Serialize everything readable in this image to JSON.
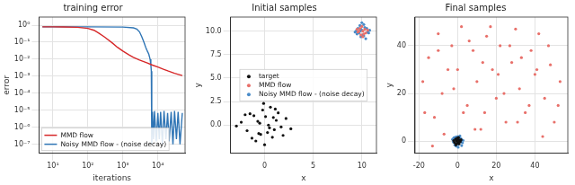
{
  "chart_data": [
    {
      "type": "line",
      "title": "training error",
      "x_label": "iterations",
      "y_label": "error",
      "log": true,
      "grid": true,
      "legend": "lower left",
      "xlim": [
        4,
        60000
      ],
      "xticks": [
        {
          "value": 10,
          "label": "10¹"
        },
        {
          "value": 100,
          "label": "10²"
        },
        {
          "value": 1000,
          "label": "10³"
        },
        {
          "value": 10000,
          "label": "10⁴"
        }
      ],
      "ylim": [
        3e-08,
        3
      ],
      "yticks": [
        {
          "value": 1,
          "label": "10⁰"
        },
        {
          "value": 0.1,
          "label": "10⁻¹"
        },
        {
          "value": 0.01,
          "label": "10⁻²"
        },
        {
          "value": 0.001,
          "label": "10⁻³"
        },
        {
          "value": 0.0001,
          "label": "10⁻⁴"
        },
        {
          "value": 1e-05,
          "label": "10⁻⁵"
        },
        {
          "value": 1e-06,
          "label": "10⁻⁶"
        },
        {
          "value": 1e-07,
          "label": "10⁻⁷"
        }
      ],
      "series": [
        {
          "name": "MMD flow",
          "color": "#d62728",
          "marker": "none",
          "line_style": "solid",
          "x": [
            5,
            10,
            20,
            50,
            100,
            150,
            200,
            300,
            500,
            700,
            1000,
            1500,
            2000,
            3000,
            5000,
            7000,
            10000,
            15000,
            20000,
            30000,
            50000
          ],
          "values": [
            0.8,
            0.8,
            0.79,
            0.75,
            0.65,
            0.5,
            0.35,
            0.2,
            0.09,
            0.05,
            0.03,
            0.018,
            0.013,
            0.009,
            0.006,
            0.0045,
            0.0035,
            0.0025,
            0.002,
            0.0015,
            0.0011
          ]
        },
        {
          "name": "Noisy MMD flow - (noise decay)",
          "color": "#2f75b5",
          "marker": "none",
          "line_style": "solid",
          "x": [
            5,
            10,
            100,
            1000,
            2000,
            2500,
            3000,
            3500,
            4000,
            4500,
            5000,
            5500,
            6000,
            6300,
            6500,
            6700,
            7000,
            7500,
            8000,
            9000,
            10000,
            11000,
            12000,
            13500,
            15000,
            17000,
            19000,
            21000,
            24000,
            27000,
            30000,
            34000,
            38000,
            43000,
            50000
          ],
          "values": [
            0.8,
            0.8,
            0.8,
            0.78,
            0.7,
            0.6,
            0.4,
            0.2,
            0.1,
            0.05,
            0.03,
            0.02,
            0.01,
            0.005,
            0.002,
            1e-07,
            8e-06,
            2e-07,
            9e-06,
            1.5e-07,
            7e-06,
            2e-07,
            8e-06,
            1e-07,
            9e-06,
            2e-07,
            7e-06,
            1.5e-07,
            8e-06,
            1e-07,
            9e-06,
            2e-07,
            8e-06,
            1e-07,
            7e-06
          ]
        }
      ]
    },
    {
      "type": "scatter",
      "title": "Initial samples",
      "x_label": "x",
      "y_label": "y",
      "grid": true,
      "legend": "center",
      "xlim": [
        -3.5,
        11.5
      ],
      "xticks": [
        0,
        5,
        10
      ],
      "ylim": [
        -3,
        11.5
      ],
      "yticks": [
        {
          "value": 0,
          "label": "0.0"
        },
        {
          "value": 2.5,
          "label": "2.5"
        },
        {
          "value": 5,
          "label": "5.0"
        },
        {
          "value": 7.5,
          "label": "7.5"
        },
        {
          "value": 10,
          "label": "10.0"
        }
      ],
      "series": [
        {
          "name": "target",
          "color": "#111111",
          "marker": "o",
          "x": [
            -0.5,
            0.3,
            1.2,
            -1.1,
            0.8,
            -0.2,
            1.7,
            -1.8,
            0.1,
            -0.9,
            2.2,
            -2.4,
            0.6,
            1.0,
            -0.4,
            -1.5,
            0.4,
            1.4,
            -0.7,
            0.0,
            2.7,
            -2.9,
            0.9,
            -1.3,
            1.9,
            -0.1,
            0.5,
            -0.6,
            1.1,
            -2.0
          ],
          "values": [
            0.2,
            -0.8,
            0.5,
            1.0,
            -1.3,
            1.6,
            -0.2,
            -0.6,
            0.9,
            -1.7,
            0.7,
            0.3,
            1.9,
            -0.5,
            -1.0,
            1.2,
            0.0,
            1.3,
            0.4,
            -2.1,
            -0.4,
            -0.1,
            0.8,
            -1.4,
            -1.1,
            2.3,
            -0.3,
            -0.9,
            1.7,
            1.1
          ]
        },
        {
          "name": "MMD flow",
          "color": "#e8706a",
          "marker": "o",
          "x": [
            10.1,
            9.8,
            10.4,
            9.6,
            10.0,
            10.3,
            9.9,
            10.6,
            9.5,
            10.2,
            9.7,
            10.1
          ],
          "values": [
            10.0,
            10.3,
            9.8,
            9.9,
            10.5,
            10.2,
            9.6,
            10.1,
            10.2,
            9.7,
            10.0,
            9.4
          ]
        },
        {
          "name": "Noisy MMD flow - (noise decay)",
          "color": "#4a8cc9",
          "marker": "o",
          "x": [
            10.0,
            9.7,
            10.3,
            9.4,
            10.6,
            9.9,
            10.2,
            9.6,
            10.8,
            10.1,
            9.3,
            10.4,
            9.8,
            10.0,
            10.5,
            9.5,
            10.7,
            9.9,
            10.2,
            9.8
          ],
          "values": [
            10.1,
            9.8,
            10.4,
            10.0,
            9.9,
            9.4,
            10.7,
            10.3,
            10.1,
            9.6,
            9.9,
            9.2,
            10.6,
            10.9,
            10.3,
            9.7,
            9.8,
            10.2,
            9.5,
            10.0
          ]
        }
      ]
    },
    {
      "type": "scatter",
      "title": "Final samples",
      "x_label": "x",
      "y_label": "y",
      "grid": true,
      "xlim": [
        -22,
        57
      ],
      "xticks": [
        -20,
        0,
        20,
        40
      ],
      "ylim": [
        -5,
        52
      ],
      "yticks": [
        0,
        20,
        40
      ],
      "series": [
        {
          "name": "target",
          "color": "#111111",
          "marker": "o",
          "x": [
            -0.5,
            0.3,
            1.0,
            -1.1,
            0.7,
            -0.2,
            1.4,
            -1.6,
            0.1,
            -0.9,
            1.8,
            -2.0,
            0.5,
            -0.4,
            0.0
          ],
          "values": [
            0.2,
            -0.7,
            0.5,
            0.9,
            -1.1,
            1.3,
            -0.2,
            -0.5,
            0.8,
            -1.5,
            0.6,
            0.3,
            1.6,
            -0.9,
            0.0
          ]
        },
        {
          "name": "MMD flow",
          "color": "#e8706a",
          "marker": "o",
          "x": [
            -18,
            -15,
            -12,
            -10,
            -8,
            -5,
            -3,
            2,
            5,
            8,
            10,
            12,
            15,
            18,
            20,
            22,
            25,
            28,
            30,
            32,
            35,
            38,
            40,
            42,
            45,
            48,
            50,
            53,
            -13,
            -7,
            0,
            6,
            14,
            24,
            33,
            44,
            -17,
            -2,
            9,
            17,
            27,
            37,
            47,
            52,
            -10,
            3,
            21,
            31,
            41,
            13
          ],
          "values": [
            25,
            35,
            10,
            45,
            20,
            30,
            40,
            48,
            15,
            38,
            25,
            5,
            44,
            30,
            18,
            40,
            8,
            33,
            47,
            22,
            12,
            38,
            28,
            45,
            18,
            32,
            8,
            25,
            -2,
            3,
            30,
            42,
            12,
            20,
            35,
            2,
            12,
            22,
            5,
            48,
            40,
            15,
            40,
            15,
            38,
            12,
            28,
            8,
            30,
            33
          ]
        },
        {
          "name": "Noisy MMD flow - (noise decay)",
          "color": "#4a8cc9",
          "marker": "o",
          "x": [
            -1.5,
            0.5,
            1.8,
            -2.2,
            0.0,
            2.5,
            -0.8,
            1.2,
            -1.9,
            0.9,
            -0.3,
            2.1,
            -2.6,
            1.5,
            -1.0,
            0.3,
            2.8,
            -0.5,
            -1.4,
            1.0
          ],
          "values": [
            0.5,
            -1.2,
            1.0,
            -0.3,
            2.0,
            -0.6,
            -2.0,
            2.2,
            1.5,
            0.2,
            -0.8,
            -1.8,
            0.8,
            -0.2,
            1.8,
            -2.5,
            0.4,
            1.0,
            -1.5,
            1.4
          ]
        }
      ]
    }
  ]
}
